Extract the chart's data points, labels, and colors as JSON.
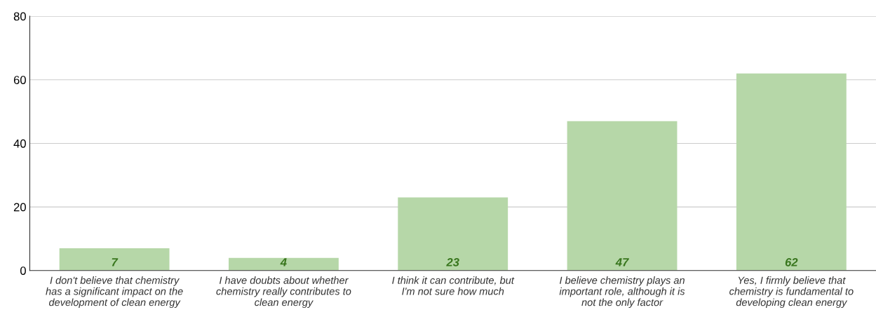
{
  "chart_data": {
    "type": "bar",
    "categories": [
      "I don't believe that chemistry has a significant impact on the development of clean energy",
      "I have doubts about whether chemistry really contributes to clean energy",
      "I think it can contribute, but I'm not sure how much",
      "I believe chemistry plays an important role, although it is not the only factor",
      "Yes, I firmly believe that chemistry is fundamental to developing clean energy"
    ],
    "values": [
      7,
      4,
      23,
      47,
      62
    ],
    "color": "#b6d7a8",
    "ylim": [
      0,
      80
    ],
    "yticks": [
      0,
      20,
      40,
      60,
      80
    ],
    "grid": "y",
    "data_labels": true
  }
}
